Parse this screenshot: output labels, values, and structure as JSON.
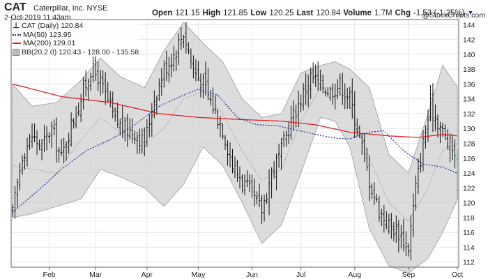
{
  "header": {
    "symbol": "CAT",
    "company": "Caterpillar, Inc.",
    "exchange": "NYSE",
    "datetime": "2-Oct-2019 11:43am",
    "watermark": "@StockCharts.com",
    "quote": {
      "open_label": "Open",
      "open": "121.15",
      "high_label": "High",
      "high": "121.85",
      "low_label": "Low",
      "low": "120.25",
      "last_label": "Last",
      "last": "120.84",
      "volume_label": "Volume",
      "volume": "1.7M",
      "chg_label": "Chg",
      "chg": "-1.53 (-1.25%)",
      "chg_arrow": "▼"
    }
  },
  "legend": {
    "price": "CAT (Daily) 120.84",
    "ma50": "MA(50) 123.95",
    "ma200": "MA(200) 129.01",
    "bb": "BB(20,2.0) 120.43 - 128.00 - 135.58"
  },
  "colors": {
    "ma50": "#1a2b9a",
    "ma200": "#e02020",
    "bb_fill": "#d0d0d0",
    "bar": "#111111",
    "last_bar": "#2ca02c"
  },
  "chart_data": {
    "type": "ohlc",
    "y_ticks": [
      112,
      114,
      116,
      118,
      120,
      122,
      124,
      126,
      128,
      130,
      132,
      134,
      136,
      138,
      140,
      142,
      144
    ],
    "ylim": [
      111.5,
      144.5
    ],
    "x_tick_labels": [
      "Feb",
      "Mar",
      "Apr",
      "May",
      "Jun",
      "Jul",
      "Aug",
      "Sep",
      "Oct"
    ],
    "x_tick_index": [
      15,
      34,
      55,
      76,
      98,
      118,
      140,
      162,
      182
    ],
    "n_days": 183,
    "closes": [
      [
        0,
        118.5
      ],
      [
        4,
        126.5
      ],
      [
        8,
        129
      ],
      [
        12,
        127.5
      ],
      [
        16,
        130
      ],
      [
        20,
        126
      ],
      [
        24,
        130.5
      ],
      [
        28,
        134
      ],
      [
        32,
        138
      ],
      [
        35,
        137
      ],
      [
        38,
        134.5
      ],
      [
        42,
        131
      ],
      [
        46,
        130
      ],
      [
        50,
        129.5
      ],
      [
        54,
        128
      ],
      [
        58,
        134
      ],
      [
        62,
        138
      ],
      [
        66,
        140
      ],
      [
        70,
        143
      ],
      [
        74,
        138
      ],
      [
        78,
        136
      ],
      [
        82,
        133
      ],
      [
        86,
        130
      ],
      [
        90,
        125
      ],
      [
        94,
        123
      ],
      [
        98,
        121
      ],
      [
        102,
        119
      ],
      [
        106,
        124
      ],
      [
        110,
        127
      ],
      [
        114,
        131
      ],
      [
        118,
        134
      ],
      [
        122,
        137
      ],
      [
        126,
        136
      ],
      [
        130,
        135
      ],
      [
        134,
        136
      ],
      [
        138,
        134
      ],
      [
        142,
        129
      ],
      [
        146,
        123
      ],
      [
        150,
        119
      ],
      [
        154,
        117
      ],
      [
        158,
        116
      ],
      [
        162,
        114
      ],
      [
        165,
        122
      ],
      [
        168,
        128
      ],
      [
        171,
        133
      ],
      [
        174,
        131
      ],
      [
        178,
        128
      ],
      [
        181,
        127
      ],
      [
        182,
        120.84
      ]
    ],
    "ma50": [
      [
        0,
        118.7
      ],
      [
        10,
        121.5
      ],
      [
        20,
        124.5
      ],
      [
        30,
        127
      ],
      [
        40,
        128.5
      ],
      [
        50,
        130.5
      ],
      [
        60,
        133
      ],
      [
        70,
        134.5
      ],
      [
        76,
        135.3
      ],
      [
        84,
        134.5
      ],
      [
        92,
        131.5
      ],
      [
        100,
        130.5
      ],
      [
        108,
        130.4
      ],
      [
        116,
        129.8
      ],
      [
        124,
        129.2
      ],
      [
        132,
        128.7
      ],
      [
        138,
        128.6
      ],
      [
        146,
        129.5
      ],
      [
        152,
        129.7
      ],
      [
        160,
        127
      ],
      [
        168,
        125.2
      ],
      [
        176,
        124.8
      ],
      [
        182,
        123.95
      ]
    ],
    "ma200": [
      [
        0,
        136
      ],
      [
        20,
        134.3
      ],
      [
        40,
        133.5
      ],
      [
        60,
        132
      ],
      [
        76,
        131.5
      ],
      [
        94,
        131.2
      ],
      [
        110,
        131
      ],
      [
        124,
        130.5
      ],
      [
        138,
        129.5
      ],
      [
        154,
        129
      ],
      [
        166,
        128.8
      ],
      [
        176,
        129.2
      ],
      [
        182,
        129.01
      ]
    ],
    "bb_mid": [
      [
        0,
        125
      ],
      [
        8,
        124.5
      ],
      [
        18,
        124
      ],
      [
        28,
        128.5
      ],
      [
        36,
        131.5
      ],
      [
        44,
        129.5
      ],
      [
        54,
        128
      ],
      [
        62,
        130
      ],
      [
        70,
        134
      ],
      [
        78,
        135
      ],
      [
        86,
        132
      ],
      [
        94,
        127
      ],
      [
        102,
        123
      ],
      [
        110,
        124.5
      ],
      [
        118,
        131
      ],
      [
        126,
        135.5
      ],
      [
        132,
        135.5
      ],
      [
        138,
        133
      ],
      [
        146,
        126
      ],
      [
        154,
        120
      ],
      [
        162,
        117.5
      ],
      [
        170,
        122
      ],
      [
        176,
        127
      ],
      [
        182,
        128
      ]
    ],
    "bb_upper": [
      [
        0,
        136
      ],
      [
        8,
        133
      ],
      [
        18,
        133.5
      ],
      [
        28,
        136.5
      ],
      [
        36,
        139.5
      ],
      [
        44,
        137
      ],
      [
        54,
        135.5
      ],
      [
        62,
        140.5
      ],
      [
        70,
        144.3
      ],
      [
        78,
        141.5
      ],
      [
        86,
        139
      ],
      [
        94,
        134
      ],
      [
        102,
        131.5
      ],
      [
        110,
        132
      ],
      [
        118,
        137.5
      ],
      [
        126,
        138.5
      ],
      [
        132,
        139
      ],
      [
        138,
        138
      ],
      [
        146,
        135.5
      ],
      [
        154,
        126.5
      ],
      [
        162,
        124
      ],
      [
        170,
        132
      ],
      [
        176,
        138.5
      ],
      [
        182,
        135.6
      ]
    ],
    "bb_lower": [
      [
        0,
        118
      ],
      [
        8,
        118.5
      ],
      [
        18,
        119.5
      ],
      [
        28,
        120.5
      ],
      [
        36,
        124.5
      ],
      [
        44,
        123.5
      ],
      [
        54,
        122
      ],
      [
        62,
        119.5
      ],
      [
        70,
        122.5
      ],
      [
        78,
        127.5
      ],
      [
        86,
        125
      ],
      [
        94,
        120
      ],
      [
        102,
        114.5
      ],
      [
        110,
        117
      ],
      [
        118,
        124
      ],
      [
        126,
        131.5
      ],
      [
        132,
        131
      ],
      [
        138,
        127.5
      ],
      [
        146,
        116.5
      ],
      [
        154,
        111.5
      ],
      [
        162,
        110.5
      ],
      [
        170,
        112.5
      ],
      [
        176,
        116
      ],
      [
        182,
        120.4
      ]
    ]
  }
}
